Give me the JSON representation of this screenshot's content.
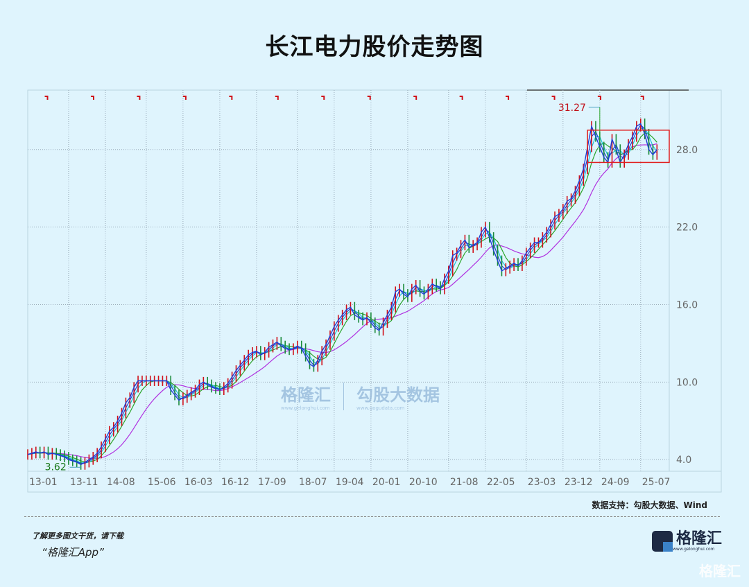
{
  "title": "长江电力股价走势图",
  "source": "数据支持：勾股大数据、Wind",
  "promo": {
    "line1": "了解更多图文干货，请下载",
    "line2": "“格隆汇App”"
  },
  "logo": {
    "name": "格隆汇",
    "url": "www.gelonghui.com"
  },
  "watermark": {
    "brand1": "格隆汇",
    "url1": "www.gelonghui.com",
    "brand2": "勾股大数据",
    "url2": "www.gogudata.com"
  },
  "corner_watermark": "格隆汇",
  "chart_data": {
    "type": "line",
    "title": "长江电力股价走势图",
    "xlabel": "",
    "ylabel": "",
    "ylim": [
      3.1,
      32.6
    ],
    "xlim": [
      "2013-01",
      "2026-02"
    ],
    "grid": true,
    "y_axis_position": "right",
    "yticks": [
      "4.0",
      "10.0",
      "16.0",
      "22.0",
      "28.0"
    ],
    "xticks": [
      "13-01",
      "13-11",
      "14-08",
      "15-06",
      "16-03",
      "16-12",
      "17-09",
      "18-07",
      "19-04",
      "20-01",
      "20-10",
      "21-08",
      "22-05",
      "23-03",
      "23-12",
      "24-09",
      "25-07"
    ],
    "monthly_close": {
      "2013": [
        4.4,
        4.5,
        4.6,
        4.5,
        4.6,
        4.4,
        4.5,
        4.4,
        4.3,
        4.2,
        4.0,
        3.9
      ],
      "2014": [
        3.8,
        3.62,
        3.8,
        4.0,
        4.2,
        4.5,
        5.0,
        5.6,
        6.2,
        6.5,
        7.0,
        7.6
      ],
      "2015": [
        8.4,
        8.8,
        9.6,
        10.1,
        10.1,
        10.1,
        10.1,
        10.1,
        10.1,
        10.1,
        10.1,
        9.4
      ],
      "2016": [
        9.0,
        8.6,
        8.8,
        9.0,
        9.2,
        9.4,
        9.8,
        10.0,
        9.8,
        9.6,
        9.5,
        9.4
      ],
      "2017": [
        9.6,
        9.9,
        10.4,
        10.9,
        11.3,
        11.7,
        12.1,
        12.3,
        12.4,
        12.1,
        12.3,
        12.7
      ],
      "2018": [
        12.9,
        13.1,
        12.8,
        12.6,
        12.5,
        12.6,
        12.8,
        12.6,
        12.0,
        11.4,
        11.2,
        11.7
      ],
      "2019": [
        12.4,
        12.9,
        13.6,
        14.3,
        14.8,
        15.2,
        15.6,
        15.8,
        15.2,
        15.0,
        14.8,
        15.0
      ],
      "2020": [
        14.6,
        14.2,
        14.0,
        14.6,
        15.2,
        15.8,
        17.0,
        17.2,
        16.8,
        16.6,
        17.2,
        17.5
      ],
      "2021": [
        17.0,
        16.8,
        17.2,
        17.6,
        17.4,
        17.2,
        18.0,
        18.6,
        19.8,
        20.0,
        20.6,
        21.0
      ],
      "2022": [
        20.4,
        20.6,
        20.8,
        21.6,
        22.0,
        21.2,
        20.2,
        19.4,
        18.6,
        18.8,
        19.0,
        19.2
      ],
      "2023": [
        19.0,
        19.4,
        20.0,
        20.4,
        20.8,
        20.8,
        21.2,
        21.6,
        22.2,
        22.8,
        23.0,
        23.4
      ],
      "2024": [
        24.0,
        24.2,
        24.8,
        25.6,
        26.5,
        28.2,
        29.8,
        29.0,
        28.2,
        27.4,
        27.0,
        28.8
      ],
      "2025": [
        28.0,
        27.0,
        27.6,
        28.4,
        29.0,
        29.8,
        30.0,
        29.2,
        28.0,
        27.6,
        28.0
      ]
    },
    "moving_averages": [
      {
        "color": "#1f3fd6"
      },
      {
        "color": "#19c3d6"
      },
      {
        "color": "#2aa52a"
      },
      {
        "color": "#b030e0"
      }
    ],
    "annotations": [
      {
        "label": "31.27",
        "type": "high",
        "x": "2024-09",
        "y": 31.27,
        "color": "#c0101a"
      },
      {
        "label": "3.62",
        "type": "low",
        "x": "2014-02",
        "y": 3.62,
        "color": "#1a7a1a"
      }
    ],
    "highlight_box": {
      "x": [
        "2024-06",
        "2026-02"
      ],
      "y": [
        27.0,
        29.5
      ],
      "color": "#e02020"
    },
    "colors": {
      "price": "#1f3fd6",
      "up_candle": "#d0101a",
      "grid": "#9ab"
    }
  }
}
